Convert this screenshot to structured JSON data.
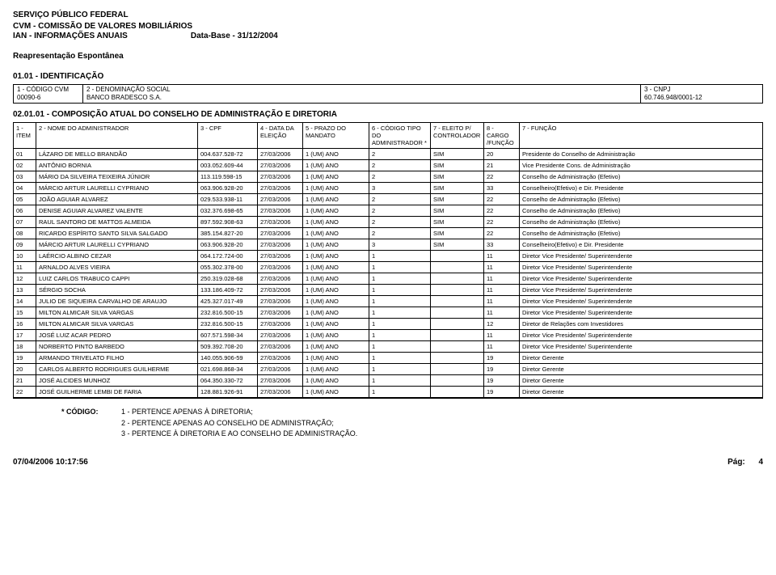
{
  "header": {
    "line1": "SERVIÇO PÚBLICO FEDERAL",
    "line2": "CVM - COMISSÃO DE VALORES MOBILIÁRIOS",
    "line3_left": "IAN - INFORMAÇÕES ANUAIS",
    "line3_right": "Data-Base - 31/12/2004",
    "sub": "Reapresentação Espontânea",
    "section": "01.01 - IDENTIFICAÇÃO"
  },
  "block1": {
    "labels": {
      "c1": "1 - CÓDIGO CVM",
      "c2": "2 - DENOMINAÇÃO SOCIAL",
      "c3": "3 - CNPJ"
    },
    "values": {
      "c1": "00090-6",
      "c2": "BANCO BRADESCO S.A.",
      "c3": "60.746.948/0001-12"
    }
  },
  "section2": "02.01.01 - COMPOSIÇÃO ATUAL DO CONSELHO DE ADMINISTRAÇÃO E DIRETORIA",
  "columns": {
    "item": "1 - ITEM",
    "nome": "2 - NOME DO ADMINISTRADOR",
    "cpf": "3 - CPF",
    "data": "4 - DATA DA ELEIÇÃO",
    "prazo": "5 - PRAZO DO MANDATO",
    "tipo": "6 - CÓDIGO TIPO DO ADMINISTRADOR *",
    "eleito": "7 - ELEITO P/ CONTROLADOR",
    "cargo": "8 - CARGO /FUNÇÃO",
    "func": "7 - FUNÇÃO"
  },
  "rows": [
    {
      "item": "01",
      "nome": "LÁZARO DE MELLO BRANDÃO",
      "cpf": "004.637.528-72",
      "data": "27/03/2006",
      "prazo": "1 (UM) ANO",
      "tipo": "2",
      "eleito": "SIM",
      "cargo": "20",
      "func": "Presidente do Conselho de Administração"
    },
    {
      "item": "02",
      "nome": "ANTÔNIO BORNIA",
      "cpf": "003.052.609-44",
      "data": "27/03/2006",
      "prazo": "1 (UM) ANO",
      "tipo": "2",
      "eleito": "SIM",
      "cargo": "21",
      "func": "Vice Presidente Cons. de Administração"
    },
    {
      "item": "03",
      "nome": "MÁRIO DA SILVEIRA TEIXEIRA JÚNIOR",
      "cpf": "113.119.598-15",
      "data": "27/03/2006",
      "prazo": "1 (UM) ANO",
      "tipo": "2",
      "eleito": "SIM",
      "cargo": "22",
      "func": "Conselho de Administração (Efetivo)"
    },
    {
      "item": "04",
      "nome": "MÁRCIO ARTUR LAURELLI CYPRIANO",
      "cpf": "063.906.928-20",
      "data": "27/03/2006",
      "prazo": "1 (UM) ANO",
      "tipo": "3",
      "eleito": "SIM",
      "cargo": "33",
      "func": "Conselheiro(Efetivo) e Dir. Presidente"
    },
    {
      "item": "05",
      "nome": "JOÃO AGUIAR ALVAREZ",
      "cpf": "029.533.938-11",
      "data": "27/03/2006",
      "prazo": "1 (UM) ANO",
      "tipo": "2",
      "eleito": "SIM",
      "cargo": "22",
      "func": "Conselho de Administração (Efetivo)"
    },
    {
      "item": "06",
      "nome": "DENISE AGUIAR ALVAREZ VALENTE",
      "cpf": "032.376.698-65",
      "data": "27/03/2006",
      "prazo": "1 (UM) ANO",
      "tipo": "2",
      "eleito": "SIM",
      "cargo": "22",
      "func": "Conselho de Administração (Efetivo)"
    },
    {
      "item": "07",
      "nome": "RAUL SANTORO DE MATTOS ALMEIDA",
      "cpf": "897.592.908-63",
      "data": "27/03/2006",
      "prazo": "1 (UM) ANO",
      "tipo": "2",
      "eleito": "SIM",
      "cargo": "22",
      "func": "Conselho de Administração (Efetivo)"
    },
    {
      "item": "08",
      "nome": "RICARDO ESPÍRITO SANTO SILVA SALGADO",
      "cpf": "385.154.827-20",
      "data": "27/03/2006",
      "prazo": "1 (UM) ANO",
      "tipo": "2",
      "eleito": "SIM",
      "cargo": "22",
      "func": "Conselho de Administração (Efetivo)"
    },
    {
      "item": "09",
      "nome": "MÁRCIO ARTUR LAURELLI CYPRIANO",
      "cpf": "063.906.928-20",
      "data": "27/03/2006",
      "prazo": "1 (UM) ANO",
      "tipo": "3",
      "eleito": "SIM",
      "cargo": "33",
      "func": "Conselheiro(Efetivo) e Dir. Presidente"
    },
    {
      "item": "10",
      "nome": "LAÉRCIO ALBINO CEZAR",
      "cpf": "064.172.724-00",
      "data": "27/03/2006",
      "prazo": "1 (UM) ANO",
      "tipo": "1",
      "eleito": "",
      "cargo": "11",
      "func": "Diretor Vice Presidente/ Superintendente"
    },
    {
      "item": "11",
      "nome": "ARNALDO ALVES VIEIRA",
      "cpf": "055.302.378-00",
      "data": "27/03/2006",
      "prazo": "1 (UM) ANO",
      "tipo": "1",
      "eleito": "",
      "cargo": "11",
      "func": "Diretor Vice Presidente/ Superintendente"
    },
    {
      "item": "12",
      "nome": "LUIZ CARLOS TRABUCO CAPPI",
      "cpf": "250.319.028-68",
      "data": "27/03/2006",
      "prazo": "1 (UM) ANO",
      "tipo": "1",
      "eleito": "",
      "cargo": "11",
      "func": "Diretor Vice Presidente/ Superintendente"
    },
    {
      "item": "13",
      "nome": "SÉRGIO SOCHA",
      "cpf": "133.186.409-72",
      "data": "27/03/2006",
      "prazo": "1 (UM) ANO",
      "tipo": "1",
      "eleito": "",
      "cargo": "11",
      "func": "Diretor Vice Presidente/ Superintendente"
    },
    {
      "item": "14",
      "nome": "JULIO DE SIQUEIRA CARVALHO DE ARAUJO",
      "cpf": "425.327.017-49",
      "data": "27/03/2006",
      "prazo": "1 (UM) ANO",
      "tipo": "1",
      "eleito": "",
      "cargo": "11",
      "func": "Diretor Vice Presidente/ Superintendente"
    },
    {
      "item": "15",
      "nome": "MILTON ALMICAR SILVA VARGAS",
      "cpf": "232.816.500-15",
      "data": "27/03/2006",
      "prazo": "1 (UM) ANO",
      "tipo": "1",
      "eleito": "",
      "cargo": "11",
      "func": "Diretor Vice Presidente/ Superintendente"
    },
    {
      "item": "16",
      "nome": "MILTON ALMICAR SILVA VARGAS",
      "cpf": "232.816.500-15",
      "data": "27/03/2006",
      "prazo": "1 (UM) ANO",
      "tipo": "1",
      "eleito": "",
      "cargo": "12",
      "func": "Diretor de Relações com Investidores"
    },
    {
      "item": "17",
      "nome": "JOSÉ LUIZ ACAR PEDRO",
      "cpf": "607.571.598-34",
      "data": "27/03/2006",
      "prazo": "1 (UM) ANO",
      "tipo": "1",
      "eleito": "",
      "cargo": "11",
      "func": "Diretor Vice Presidente/ Superintendente"
    },
    {
      "item": "18",
      "nome": "NORBERTO PINTO BARBEDO",
      "cpf": "509.392.708-20",
      "data": "27/03/2006",
      "prazo": "1 (UM) ANO",
      "tipo": "1",
      "eleito": "",
      "cargo": "11",
      "func": "Diretor Vice Presidente/ Superintendente"
    },
    {
      "item": "19",
      "nome": "ARMANDO TRIVELATO FILHO",
      "cpf": "140.055.906-59",
      "data": "27/03/2006",
      "prazo": "1 (UM) ANO",
      "tipo": "1",
      "eleito": "",
      "cargo": "19",
      "func": "Diretor Gerente"
    },
    {
      "item": "20",
      "nome": "CARLOS ALBERTO RODRIGUES GUILHERME",
      "cpf": "021.698.868-34",
      "data": "27/03/2006",
      "prazo": "1 (UM) ANO",
      "tipo": "1",
      "eleito": "",
      "cargo": "19",
      "func": "Diretor Gerente"
    },
    {
      "item": "21",
      "nome": "JOSÉ ALCIDES MUNHOZ",
      "cpf": "064.350.330-72",
      "data": "27/03/2006",
      "prazo": "1 (UM) ANO",
      "tipo": "1",
      "eleito": "",
      "cargo": "19",
      "func": "Diretor Gerente"
    },
    {
      "item": "22",
      "nome": "JOSÉ GUILHERME LEMBI DE FARIA",
      "cpf": "128.881.926-91",
      "data": "27/03/2006",
      "prazo": "1 (UM) ANO",
      "tipo": "1",
      "eleito": "",
      "cargo": "19",
      "func": "Diretor Gerente"
    }
  ],
  "legend": {
    "label": "* CÓDIGO:",
    "l1": "1 - PERTENCE APENAS À DIRETORIA;",
    "l2": "2 - PERTENCE APENAS AO CONSELHO DE ADMINISTRAÇÃO;",
    "l3": "3 - PERTENCE À DIRETORIA E  AO CONSELHO DE ADMINISTRAÇÃO."
  },
  "footer": {
    "left": "07/04/2006 10:17:56",
    "right_label": "Pág:",
    "right_num": "4"
  }
}
